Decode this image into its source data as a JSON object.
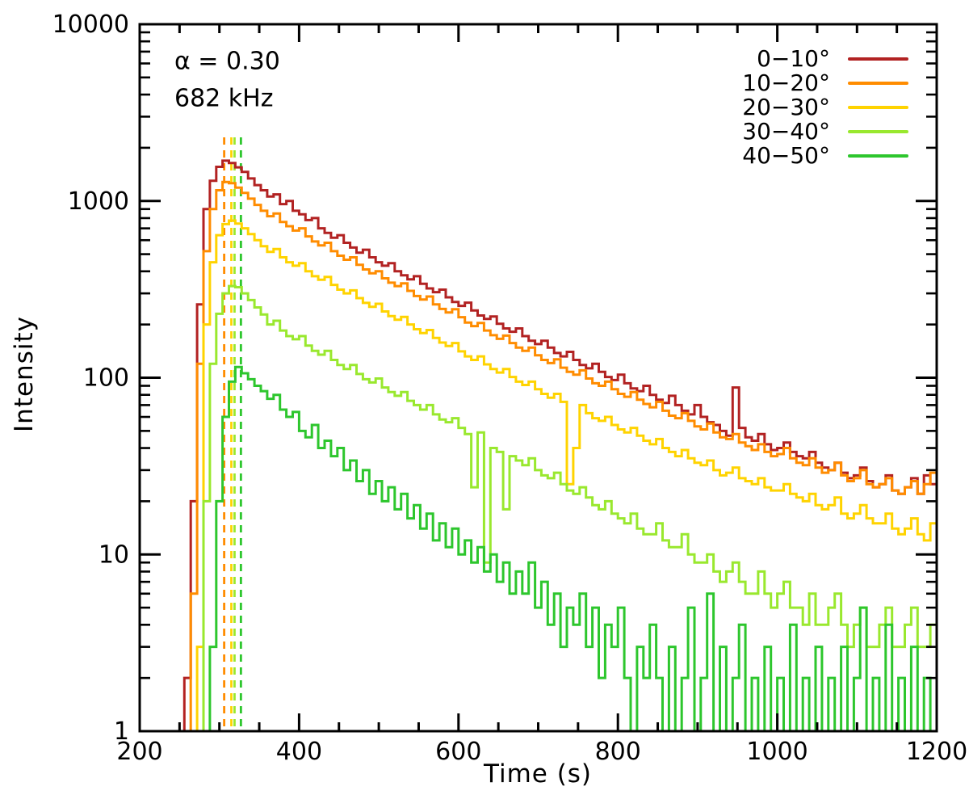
{
  "figure": {
    "kind": "log-linear light-curve plot",
    "background": "#ffffff",
    "frame_color": "#000000"
  },
  "chart_data": {
    "type": "line",
    "style": "step-histogram",
    "title": "",
    "xlabel": "Time  (s)",
    "ylabel": "Intensity",
    "annotations": [
      {
        "text": "α = 0.30"
      },
      {
        "text": "682 kHz"
      }
    ],
    "x_range": [
      200,
      1200
    ],
    "y_range": [
      1,
      10000
    ],
    "y_scale": "log",
    "grid": false,
    "x_major_ticks": [
      200,
      400,
      600,
      800,
      1000,
      1200
    ],
    "x_minor_step": 50,
    "y_major_ticks": [
      1,
      10,
      100,
      1000,
      10000
    ],
    "legend_position": "top-right",
    "x_start": 200,
    "x_step": 8,
    "peak_markers": [
      {
        "time_s": 306,
        "color": "#ff8c00",
        "series": "10−20°"
      },
      {
        "time_s": 315,
        "color": "#ffd300",
        "series": "20−30°"
      },
      {
        "time_s": 319,
        "color": "#99e82e",
        "series": "30−40°"
      },
      {
        "time_s": 327,
        "color": "#2dc62d",
        "series": "40−50°"
      }
    ],
    "series": [
      {
        "name": "0−10°",
        "angle_range_deg": [
          0,
          10
        ],
        "color": "#b22222",
        "peak_time_s": 304,
        "peak_intensity": 1690,
        "values": [
          1,
          1,
          1,
          1,
          1,
          1,
          1,
          2,
          20,
          260,
          900,
          1300,
          1560,
          1690,
          1640,
          1550,
          1460,
          1340,
          1230,
          1150,
          1060,
          1090,
          960,
          1000,
          880,
          840,
          780,
          800,
          700,
          660,
          620,
          640,
          580,
          545,
          510,
          530,
          480,
          450,
          430,
          445,
          400,
          380,
          360,
          375,
          340,
          320,
          305,
          315,
          285,
          268,
          255,
          266,
          240,
          225,
          215,
          222,
          202,
          190,
          182,
          190,
          172,
          162,
          155,
          162,
          148,
          138,
          132,
          140,
          126,
          118,
          113,
          120,
          108,
          101,
          97,
          104,
          93,
          87,
          84,
          90,
          80,
          75,
          72,
          79,
          70,
          65,
          62,
          70,
          60,
          56,
          54,
          50,
          47,
          88,
          52,
          46,
          44,
          48,
          42,
          39,
          40,
          43,
          38,
          36,
          35,
          38,
          33,
          31,
          30,
          33,
          29,
          27,
          28,
          31,
          26,
          24,
          25,
          28,
          23,
          22,
          24,
          27,
          22,
          28,
          25,
          30
        ]
      },
      {
        "name": "10−20°",
        "angle_range_deg": [
          10,
          20
        ],
        "color": "#ff8c00",
        "peak_time_s": 306,
        "peak_intensity": 1280,
        "values": [
          1,
          1,
          1,
          1,
          1,
          1,
          1,
          1,
          6,
          120,
          520,
          900,
          1150,
          1280,
          1260,
          1190,
          1110,
          1030,
          950,
          880,
          820,
          850,
          760,
          720,
          680,
          700,
          630,
          590,
          560,
          580,
          520,
          490,
          465,
          480,
          435,
          410,
          390,
          400,
          365,
          345,
          330,
          342,
          310,
          290,
          277,
          288,
          260,
          245,
          234,
          244,
          220,
          205,
          196,
          204,
          185,
          174,
          166,
          173,
          157,
          148,
          142,
          148,
          134,
          126,
          121,
          127,
          114,
          108,
          104,
          110,
          99,
          93,
          90,
          95,
          86,
          81,
          78,
          83,
          75,
          71,
          68,
          73,
          65,
          61,
          59,
          63,
          57,
          53,
          51,
          55,
          49,
          46,
          45,
          48,
          43,
          41,
          39,
          42,
          38,
          36,
          37,
          40,
          35,
          33,
          32,
          35,
          31,
          29,
          30,
          33,
          28,
          26,
          27,
          30,
          25,
          24,
          25,
          27,
          23,
          22,
          24,
          26,
          22,
          25,
          29,
          34
        ]
      },
      {
        "name": "20−30°",
        "angle_range_deg": [
          20,
          30
        ],
        "color": "#ffd300",
        "peak_time_s": 315,
        "peak_intensity": 775,
        "values": [
          1,
          1,
          1,
          1,
          1,
          1,
          1,
          1,
          1,
          3,
          200,
          450,
          640,
          740,
          775,
          745,
          700,
          650,
          600,
          555,
          515,
          535,
          480,
          450,
          430,
          445,
          400,
          375,
          358,
          372,
          335,
          315,
          300,
          312,
          282,
          265,
          252,
          262,
          237,
          223,
          213,
          221,
          200,
          188,
          179,
          186,
          168,
          158,
          151,
          157,
          141,
          132,
          126,
          132,
          119,
          112,
          107,
          112,
          101,
          95,
          91,
          95,
          86,
          81,
          77,
          81,
          73,
          25,
          40,
          70,
          63,
          59,
          57,
          60,
          54,
          51,
          49,
          52,
          47,
          44,
          42,
          45,
          40,
          38,
          36,
          39,
          35,
          33,
          32,
          34,
          30,
          28,
          29,
          31,
          27,
          26,
          25,
          27,
          24,
          23,
          23,
          25,
          22,
          21,
          20,
          22,
          19,
          18,
          19,
          21,
          17,
          16,
          17,
          19,
          16,
          15,
          15,
          17,
          14,
          13,
          14,
          16,
          13,
          12,
          15,
          6
        ]
      },
      {
        "name": "30−40°",
        "angle_range_deg": [
          30,
          40
        ],
        "color": "#99e82e",
        "peak_time_s": 319,
        "peak_intensity": 330,
        "values": [
          1,
          1,
          1,
          1,
          1,
          1,
          1,
          1,
          1,
          1,
          20,
          120,
          230,
          300,
          330,
          325,
          300,
          275,
          250,
          228,
          200,
          210,
          185,
          172,
          165,
          172,
          152,
          142,
          135,
          142,
          126,
          118,
          112,
          118,
          105,
          98,
          94,
          99,
          88,
          83,
          79,
          83,
          74,
          70,
          66,
          70,
          62,
          58,
          56,
          59,
          52,
          48,
          24,
          49,
          9,
          40,
          38,
          18,
          36,
          34,
          32,
          35,
          30,
          28,
          27,
          29,
          25,
          23,
          22,
          24,
          21,
          19,
          18,
          20,
          17,
          16,
          15,
          17,
          14,
          13,
          13,
          15,
          12,
          11,
          11,
          13,
          10,
          9,
          9,
          10,
          8,
          7,
          8,
          9,
          7,
          6,
          6,
          8,
          6,
          5,
          6,
          7,
          5,
          5,
          4,
          6,
          4,
          4,
          5,
          6,
          4,
          3,
          4,
          5,
          3,
          3,
          4,
          5,
          3,
          3,
          4,
          5,
          3,
          3,
          4,
          6
        ]
      },
      {
        "name": "40−50°",
        "angle_range_deg": [
          40,
          50
        ],
        "color": "#2dc62d",
        "peak_time_s": 327,
        "peak_intensity": 115,
        "values": [
          1,
          1,
          1,
          1,
          1,
          1,
          1,
          1,
          1,
          1,
          1,
          3,
          20,
          60,
          95,
          115,
          106,
          98,
          90,
          84,
          76,
          80,
          66,
          60,
          64,
          50,
          46,
          54,
          40,
          44,
          36,
          40,
          30,
          34,
          26,
          30,
          22,
          26,
          20,
          24,
          18,
          22,
          16,
          19,
          14,
          17,
          12,
          15,
          11,
          14,
          10,
          12,
          9,
          11,
          8,
          10,
          7,
          9,
          6,
          8,
          6,
          9,
          5,
          7,
          4,
          6,
          3,
          5,
          4,
          6,
          3,
          5,
          2,
          4,
          3,
          5,
          2,
          1,
          3,
          2,
          4,
          2,
          1,
          3,
          1,
          2,
          5,
          1,
          2,
          6,
          1,
          3,
          1,
          2,
          4,
          1,
          2,
          1,
          3,
          1,
          2,
          1,
          4,
          1,
          2,
          1,
          3,
          1,
          2,
          1,
          3,
          1,
          2,
          5,
          1,
          2,
          1,
          4,
          1,
          2,
          1,
          3,
          1,
          2,
          1,
          3
        ]
      }
    ]
  }
}
